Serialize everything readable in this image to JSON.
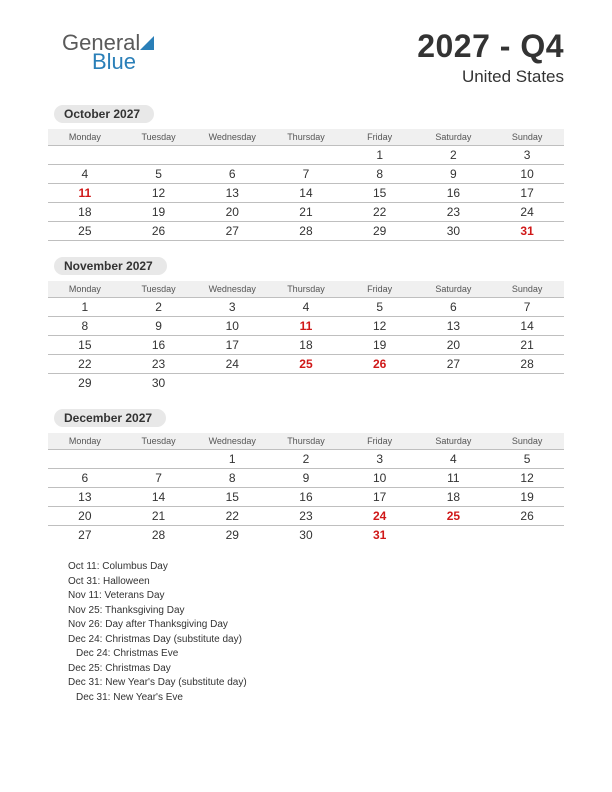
{
  "logo": {
    "line1": "General",
    "line2": "Blue"
  },
  "title": "2027 - Q4",
  "subtitle": "United States",
  "weekdays": [
    "Monday",
    "Tuesday",
    "Wednesday",
    "Thursday",
    "Friday",
    "Saturday",
    "Sunday"
  ],
  "colors": {
    "holiday_text": "#d01818",
    "header_bg": "#f0f0f0",
    "month_pill_bg": "#e8e8e8",
    "border": "#bfbfbf",
    "logo_blue": "#2a7fb8",
    "text": "#333333"
  },
  "months": [
    {
      "label": "October 2027",
      "rows": [
        [
          {
            "d": ""
          },
          {
            "d": ""
          },
          {
            "d": ""
          },
          {
            "d": ""
          },
          {
            "d": "1"
          },
          {
            "d": "2"
          },
          {
            "d": "3"
          }
        ],
        [
          {
            "d": "4"
          },
          {
            "d": "5"
          },
          {
            "d": "6"
          },
          {
            "d": "7"
          },
          {
            "d": "8"
          },
          {
            "d": "9"
          },
          {
            "d": "10"
          }
        ],
        [
          {
            "d": "11",
            "h": true
          },
          {
            "d": "12"
          },
          {
            "d": "13"
          },
          {
            "d": "14"
          },
          {
            "d": "15"
          },
          {
            "d": "16"
          },
          {
            "d": "17"
          }
        ],
        [
          {
            "d": "18"
          },
          {
            "d": "19"
          },
          {
            "d": "20"
          },
          {
            "d": "21"
          },
          {
            "d": "22"
          },
          {
            "d": "23"
          },
          {
            "d": "24"
          }
        ],
        [
          {
            "d": "25"
          },
          {
            "d": "26"
          },
          {
            "d": "27"
          },
          {
            "d": "28"
          },
          {
            "d": "29"
          },
          {
            "d": "30"
          },
          {
            "d": "31",
            "h": true
          }
        ]
      ]
    },
    {
      "label": "November 2027",
      "rows": [
        [
          {
            "d": "1"
          },
          {
            "d": "2"
          },
          {
            "d": "3"
          },
          {
            "d": "4"
          },
          {
            "d": "5"
          },
          {
            "d": "6"
          },
          {
            "d": "7"
          }
        ],
        [
          {
            "d": "8"
          },
          {
            "d": "9"
          },
          {
            "d": "10"
          },
          {
            "d": "11",
            "h": true
          },
          {
            "d": "12"
          },
          {
            "d": "13"
          },
          {
            "d": "14"
          }
        ],
        [
          {
            "d": "15"
          },
          {
            "d": "16"
          },
          {
            "d": "17"
          },
          {
            "d": "18"
          },
          {
            "d": "19"
          },
          {
            "d": "20"
          },
          {
            "d": "21"
          }
        ],
        [
          {
            "d": "22"
          },
          {
            "d": "23"
          },
          {
            "d": "24"
          },
          {
            "d": "25",
            "h": true
          },
          {
            "d": "26",
            "h": true
          },
          {
            "d": "27"
          },
          {
            "d": "28"
          }
        ],
        [
          {
            "d": "29"
          },
          {
            "d": "30"
          },
          {
            "d": ""
          },
          {
            "d": ""
          },
          {
            "d": ""
          },
          {
            "d": ""
          },
          {
            "d": ""
          }
        ]
      ]
    },
    {
      "label": "December 2027",
      "rows": [
        [
          {
            "d": ""
          },
          {
            "d": ""
          },
          {
            "d": "1"
          },
          {
            "d": "2"
          },
          {
            "d": "3"
          },
          {
            "d": "4"
          },
          {
            "d": "5"
          }
        ],
        [
          {
            "d": "6"
          },
          {
            "d": "7"
          },
          {
            "d": "8"
          },
          {
            "d": "9"
          },
          {
            "d": "10"
          },
          {
            "d": "11"
          },
          {
            "d": "12"
          }
        ],
        [
          {
            "d": "13"
          },
          {
            "d": "14"
          },
          {
            "d": "15"
          },
          {
            "d": "16"
          },
          {
            "d": "17"
          },
          {
            "d": "18"
          },
          {
            "d": "19"
          }
        ],
        [
          {
            "d": "20"
          },
          {
            "d": "21"
          },
          {
            "d": "22"
          },
          {
            "d": "23"
          },
          {
            "d": "24",
            "h": true
          },
          {
            "d": "25",
            "h": true
          },
          {
            "d": "26"
          }
        ],
        [
          {
            "d": "27"
          },
          {
            "d": "28"
          },
          {
            "d": "29"
          },
          {
            "d": "30"
          },
          {
            "d": "31",
            "h": true
          },
          {
            "d": ""
          },
          {
            "d": ""
          }
        ]
      ]
    }
  ],
  "holidays": [
    {
      "text": "Oct 11: Columbus Day",
      "indent": false
    },
    {
      "text": "Oct 31: Halloween",
      "indent": false
    },
    {
      "text": "Nov 11: Veterans Day",
      "indent": false
    },
    {
      "text": "Nov 25: Thanksgiving Day",
      "indent": false
    },
    {
      "text": "Nov 26: Day after Thanksgiving Day",
      "indent": false
    },
    {
      "text": "Dec 24: Christmas Day (substitute day)",
      "indent": false
    },
    {
      "text": "Dec 24: Christmas Eve",
      "indent": true
    },
    {
      "text": "Dec 25: Christmas Day",
      "indent": false
    },
    {
      "text": "Dec 31: New Year's Day (substitute day)",
      "indent": false
    },
    {
      "text": "Dec 31: New Year's Eve",
      "indent": true
    }
  ]
}
